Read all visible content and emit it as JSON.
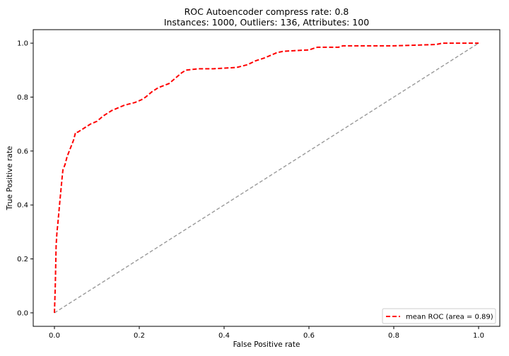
{
  "chart_data": {
    "type": "line",
    "title": "ROC Autoencoder compress rate: 0.8",
    "subtitle": "Instances: 1000, Outliers: 136, Attributes: 100",
    "xlabel": "False Positive rate",
    "ylabel": "True Positive rate",
    "xlim": [
      -0.05,
      1.05
    ],
    "ylim": [
      -0.05,
      1.05
    ],
    "xticks": [
      0.0,
      0.2,
      0.4,
      0.6,
      0.8,
      1.0
    ],
    "yticks": [
      0.0,
      0.2,
      0.4,
      0.6,
      0.8,
      1.0
    ],
    "xtick_labels": [
      "0.0",
      "0.2",
      "0.4",
      "0.6",
      "0.8",
      "1.0"
    ],
    "ytick_labels": [
      "0.0",
      "0.2",
      "0.4",
      "0.6",
      "0.8",
      "1.0"
    ],
    "grid": false,
    "legend_position": "lower-right",
    "series": [
      {
        "name": "mean ROC (area = 0.89)",
        "color": "#ff0000",
        "style": "dashed",
        "x": [
          0.0,
          0.002,
          0.004,
          0.006,
          0.008,
          0.012,
          0.015,
          0.018,
          0.02,
          0.025,
          0.03,
          0.035,
          0.04,
          0.045,
          0.05,
          0.055,
          0.065,
          0.075,
          0.085,
          0.1,
          0.115,
          0.125,
          0.135,
          0.15,
          0.165,
          0.19,
          0.205,
          0.215,
          0.23,
          0.245,
          0.27,
          0.285,
          0.3,
          0.31,
          0.34,
          0.375,
          0.43,
          0.455,
          0.475,
          0.495,
          0.51,
          0.525,
          0.54,
          0.6,
          0.61,
          0.62,
          0.67,
          0.68,
          0.72,
          0.8,
          0.9,
          0.915,
          0.93,
          1.0
        ],
        "y": [
          0.0,
          0.1,
          0.25,
          0.3,
          0.33,
          0.4,
          0.45,
          0.5,
          0.53,
          0.55,
          0.58,
          0.6,
          0.62,
          0.64,
          0.67,
          0.67,
          0.68,
          0.69,
          0.7,
          0.71,
          0.73,
          0.74,
          0.75,
          0.76,
          0.77,
          0.78,
          0.79,
          0.8,
          0.82,
          0.835,
          0.85,
          0.87,
          0.89,
          0.9,
          0.905,
          0.905,
          0.91,
          0.92,
          0.935,
          0.945,
          0.955,
          0.965,
          0.97,
          0.975,
          0.98,
          0.985,
          0.985,
          0.99,
          0.99,
          0.99,
          0.995,
          1.0,
          1.0,
          1.0
        ]
      },
      {
        "name": "",
        "color": "#999999",
        "style": "dashed",
        "x": [
          0.0,
          1.0
        ],
        "y": [
          0.0,
          1.0
        ]
      }
    ]
  }
}
